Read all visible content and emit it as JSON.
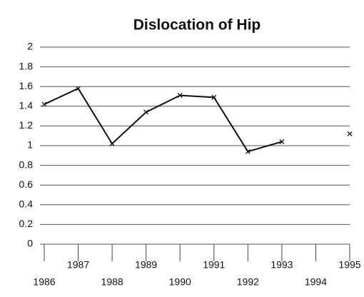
{
  "chart_data": {
    "type": "line",
    "title": "Dislocation of Hip",
    "x": [
      1986,
      1987,
      1988,
      1989,
      1990,
      1991,
      1992,
      1993,
      1994,
      1995
    ],
    "series": [
      {
        "name": null,
        "color": "#111111",
        "values": [
          1.42,
          1.58,
          1.02,
          1.34,
          1.51,
          1.49,
          0.94,
          1.04,
          null,
          1.12
        ]
      }
    ],
    "xlim": [
      1986,
      1995
    ],
    "xticks": [
      1986,
      1987,
      1988,
      1989,
      1990,
      1991,
      1992,
      1993,
      1994,
      1995
    ],
    "ylim": [
      0,
      2
    ],
    "yticks": [
      0,
      0.2,
      0.4,
      0.6,
      0.8,
      1,
      1.2,
      1.4,
      1.6,
      1.8,
      2
    ],
    "grid": true
  }
}
